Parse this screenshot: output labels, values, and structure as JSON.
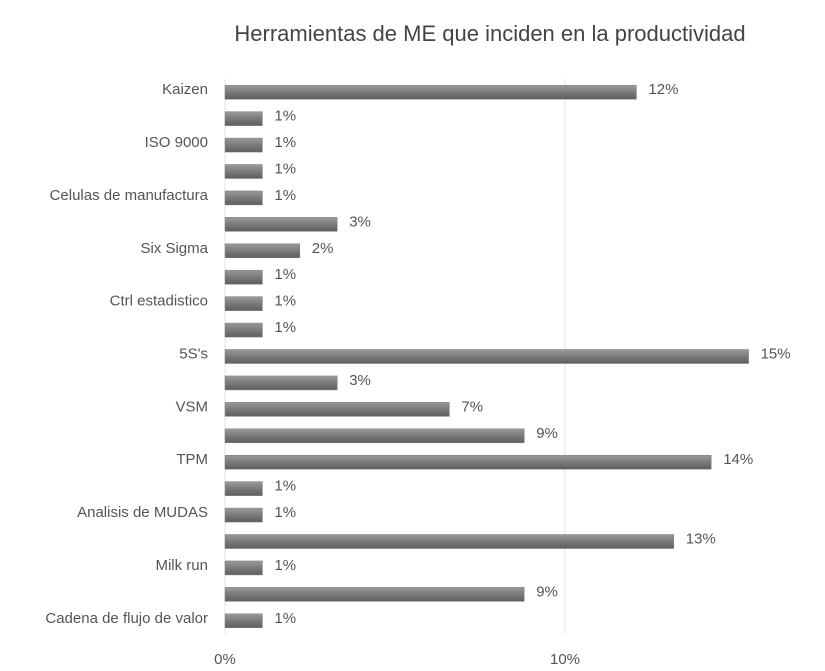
{
  "chart_data": {
    "type": "bar",
    "orientation": "horizontal",
    "title": "Herramientas de ME que inciden en la productividad",
    "categories": [
      "Kaizen",
      null,
      "ISO 9000",
      null,
      "Celulas de manufactura",
      null,
      "Six Sigma",
      null,
      "Ctrl estadistico",
      null,
      "5S's",
      null,
      "VSM",
      null,
      "TPM",
      null,
      "Analisis de MUDAS",
      null,
      "Milk run",
      null,
      "Cadena de flujo de valor"
    ],
    "values": [
      12.1,
      1.1,
      1.1,
      1.1,
      1.1,
      3.3,
      2.2,
      1.1,
      1.1,
      1.1,
      15.4,
      3.3,
      6.6,
      8.8,
      14.3,
      1.1,
      1.1,
      13.2,
      1.1,
      8.8,
      1.1
    ],
    "value_labels": [
      "12%",
      "1%",
      "1%",
      "1%",
      "1%",
      "3%",
      "2%",
      "1%",
      "1%",
      "1%",
      "15%",
      "3%",
      "7%",
      "9%",
      "14%",
      "1%",
      "1%",
      "13%",
      "1%",
      "9%",
      "1%"
    ],
    "color": "#7f7f7f",
    "xlim": [
      0,
      17.5
    ],
    "xticks": [
      {
        "value": 0,
        "label": "0%"
      },
      {
        "value": 10,
        "label": "10%"
      }
    ],
    "grid": true
  }
}
